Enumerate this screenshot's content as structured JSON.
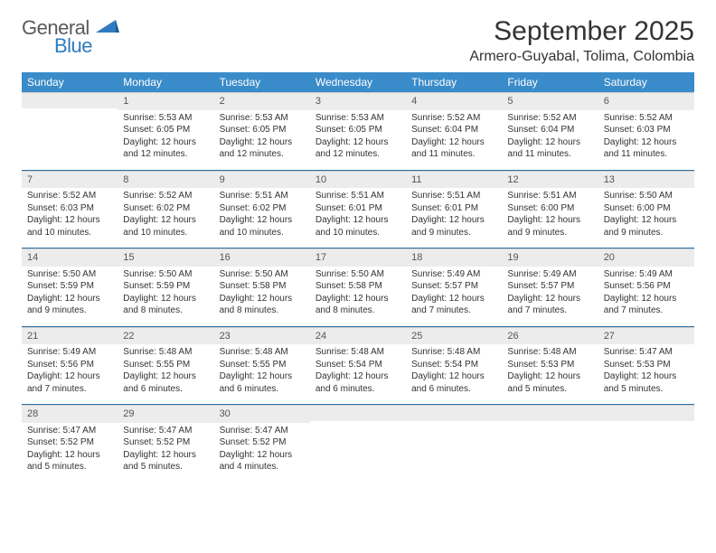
{
  "logo": {
    "text_top": "General",
    "text_bottom": "Blue"
  },
  "title": "September 2025",
  "location": "Armero-Guyabal, Tolima, Colombia",
  "colors": {
    "header_bg": "#3a8bc9",
    "header_fg": "#ffffff",
    "daynum_bg": "#ececec",
    "week_rule": "#2b6fa5",
    "text": "#333333",
    "logo_gray": "#5a5a5a",
    "logo_blue": "#2f7bbf"
  },
  "day_headers": [
    "Sunday",
    "Monday",
    "Tuesday",
    "Wednesday",
    "Thursday",
    "Friday",
    "Saturday"
  ],
  "weeks": [
    [
      {
        "n": "",
        "sr": "",
        "ss": "",
        "dl": ""
      },
      {
        "n": "1",
        "sr": "5:53 AM",
        "ss": "6:05 PM",
        "dl": "12 hours and 12 minutes."
      },
      {
        "n": "2",
        "sr": "5:53 AM",
        "ss": "6:05 PM",
        "dl": "12 hours and 12 minutes."
      },
      {
        "n": "3",
        "sr": "5:53 AM",
        "ss": "6:05 PM",
        "dl": "12 hours and 12 minutes."
      },
      {
        "n": "4",
        "sr": "5:52 AM",
        "ss": "6:04 PM",
        "dl": "12 hours and 11 minutes."
      },
      {
        "n": "5",
        "sr": "5:52 AM",
        "ss": "6:04 PM",
        "dl": "12 hours and 11 minutes."
      },
      {
        "n": "6",
        "sr": "5:52 AM",
        "ss": "6:03 PM",
        "dl": "12 hours and 11 minutes."
      }
    ],
    [
      {
        "n": "7",
        "sr": "5:52 AM",
        "ss": "6:03 PM",
        "dl": "12 hours and 10 minutes."
      },
      {
        "n": "8",
        "sr": "5:52 AM",
        "ss": "6:02 PM",
        "dl": "12 hours and 10 minutes."
      },
      {
        "n": "9",
        "sr": "5:51 AM",
        "ss": "6:02 PM",
        "dl": "12 hours and 10 minutes."
      },
      {
        "n": "10",
        "sr": "5:51 AM",
        "ss": "6:01 PM",
        "dl": "12 hours and 10 minutes."
      },
      {
        "n": "11",
        "sr": "5:51 AM",
        "ss": "6:01 PM",
        "dl": "12 hours and 9 minutes."
      },
      {
        "n": "12",
        "sr": "5:51 AM",
        "ss": "6:00 PM",
        "dl": "12 hours and 9 minutes."
      },
      {
        "n": "13",
        "sr": "5:50 AM",
        "ss": "6:00 PM",
        "dl": "12 hours and 9 minutes."
      }
    ],
    [
      {
        "n": "14",
        "sr": "5:50 AM",
        "ss": "5:59 PM",
        "dl": "12 hours and 9 minutes."
      },
      {
        "n": "15",
        "sr": "5:50 AM",
        "ss": "5:59 PM",
        "dl": "12 hours and 8 minutes."
      },
      {
        "n": "16",
        "sr": "5:50 AM",
        "ss": "5:58 PM",
        "dl": "12 hours and 8 minutes."
      },
      {
        "n": "17",
        "sr": "5:50 AM",
        "ss": "5:58 PM",
        "dl": "12 hours and 8 minutes."
      },
      {
        "n": "18",
        "sr": "5:49 AM",
        "ss": "5:57 PM",
        "dl": "12 hours and 7 minutes."
      },
      {
        "n": "19",
        "sr": "5:49 AM",
        "ss": "5:57 PM",
        "dl": "12 hours and 7 minutes."
      },
      {
        "n": "20",
        "sr": "5:49 AM",
        "ss": "5:56 PM",
        "dl": "12 hours and 7 minutes."
      }
    ],
    [
      {
        "n": "21",
        "sr": "5:49 AM",
        "ss": "5:56 PM",
        "dl": "12 hours and 7 minutes."
      },
      {
        "n": "22",
        "sr": "5:48 AM",
        "ss": "5:55 PM",
        "dl": "12 hours and 6 minutes."
      },
      {
        "n": "23",
        "sr": "5:48 AM",
        "ss": "5:55 PM",
        "dl": "12 hours and 6 minutes."
      },
      {
        "n": "24",
        "sr": "5:48 AM",
        "ss": "5:54 PM",
        "dl": "12 hours and 6 minutes."
      },
      {
        "n": "25",
        "sr": "5:48 AM",
        "ss": "5:54 PM",
        "dl": "12 hours and 6 minutes."
      },
      {
        "n": "26",
        "sr": "5:48 AM",
        "ss": "5:53 PM",
        "dl": "12 hours and 5 minutes."
      },
      {
        "n": "27",
        "sr": "5:47 AM",
        "ss": "5:53 PM",
        "dl": "12 hours and 5 minutes."
      }
    ],
    [
      {
        "n": "28",
        "sr": "5:47 AM",
        "ss": "5:52 PM",
        "dl": "12 hours and 5 minutes."
      },
      {
        "n": "29",
        "sr": "5:47 AM",
        "ss": "5:52 PM",
        "dl": "12 hours and 5 minutes."
      },
      {
        "n": "30",
        "sr": "5:47 AM",
        "ss": "5:52 PM",
        "dl": "12 hours and 4 minutes."
      },
      {
        "n": "",
        "sr": "",
        "ss": "",
        "dl": ""
      },
      {
        "n": "",
        "sr": "",
        "ss": "",
        "dl": ""
      },
      {
        "n": "",
        "sr": "",
        "ss": "",
        "dl": ""
      },
      {
        "n": "",
        "sr": "",
        "ss": "",
        "dl": ""
      }
    ]
  ],
  "labels": {
    "sunrise": "Sunrise:",
    "sunset": "Sunset:",
    "daylight": "Daylight:"
  }
}
